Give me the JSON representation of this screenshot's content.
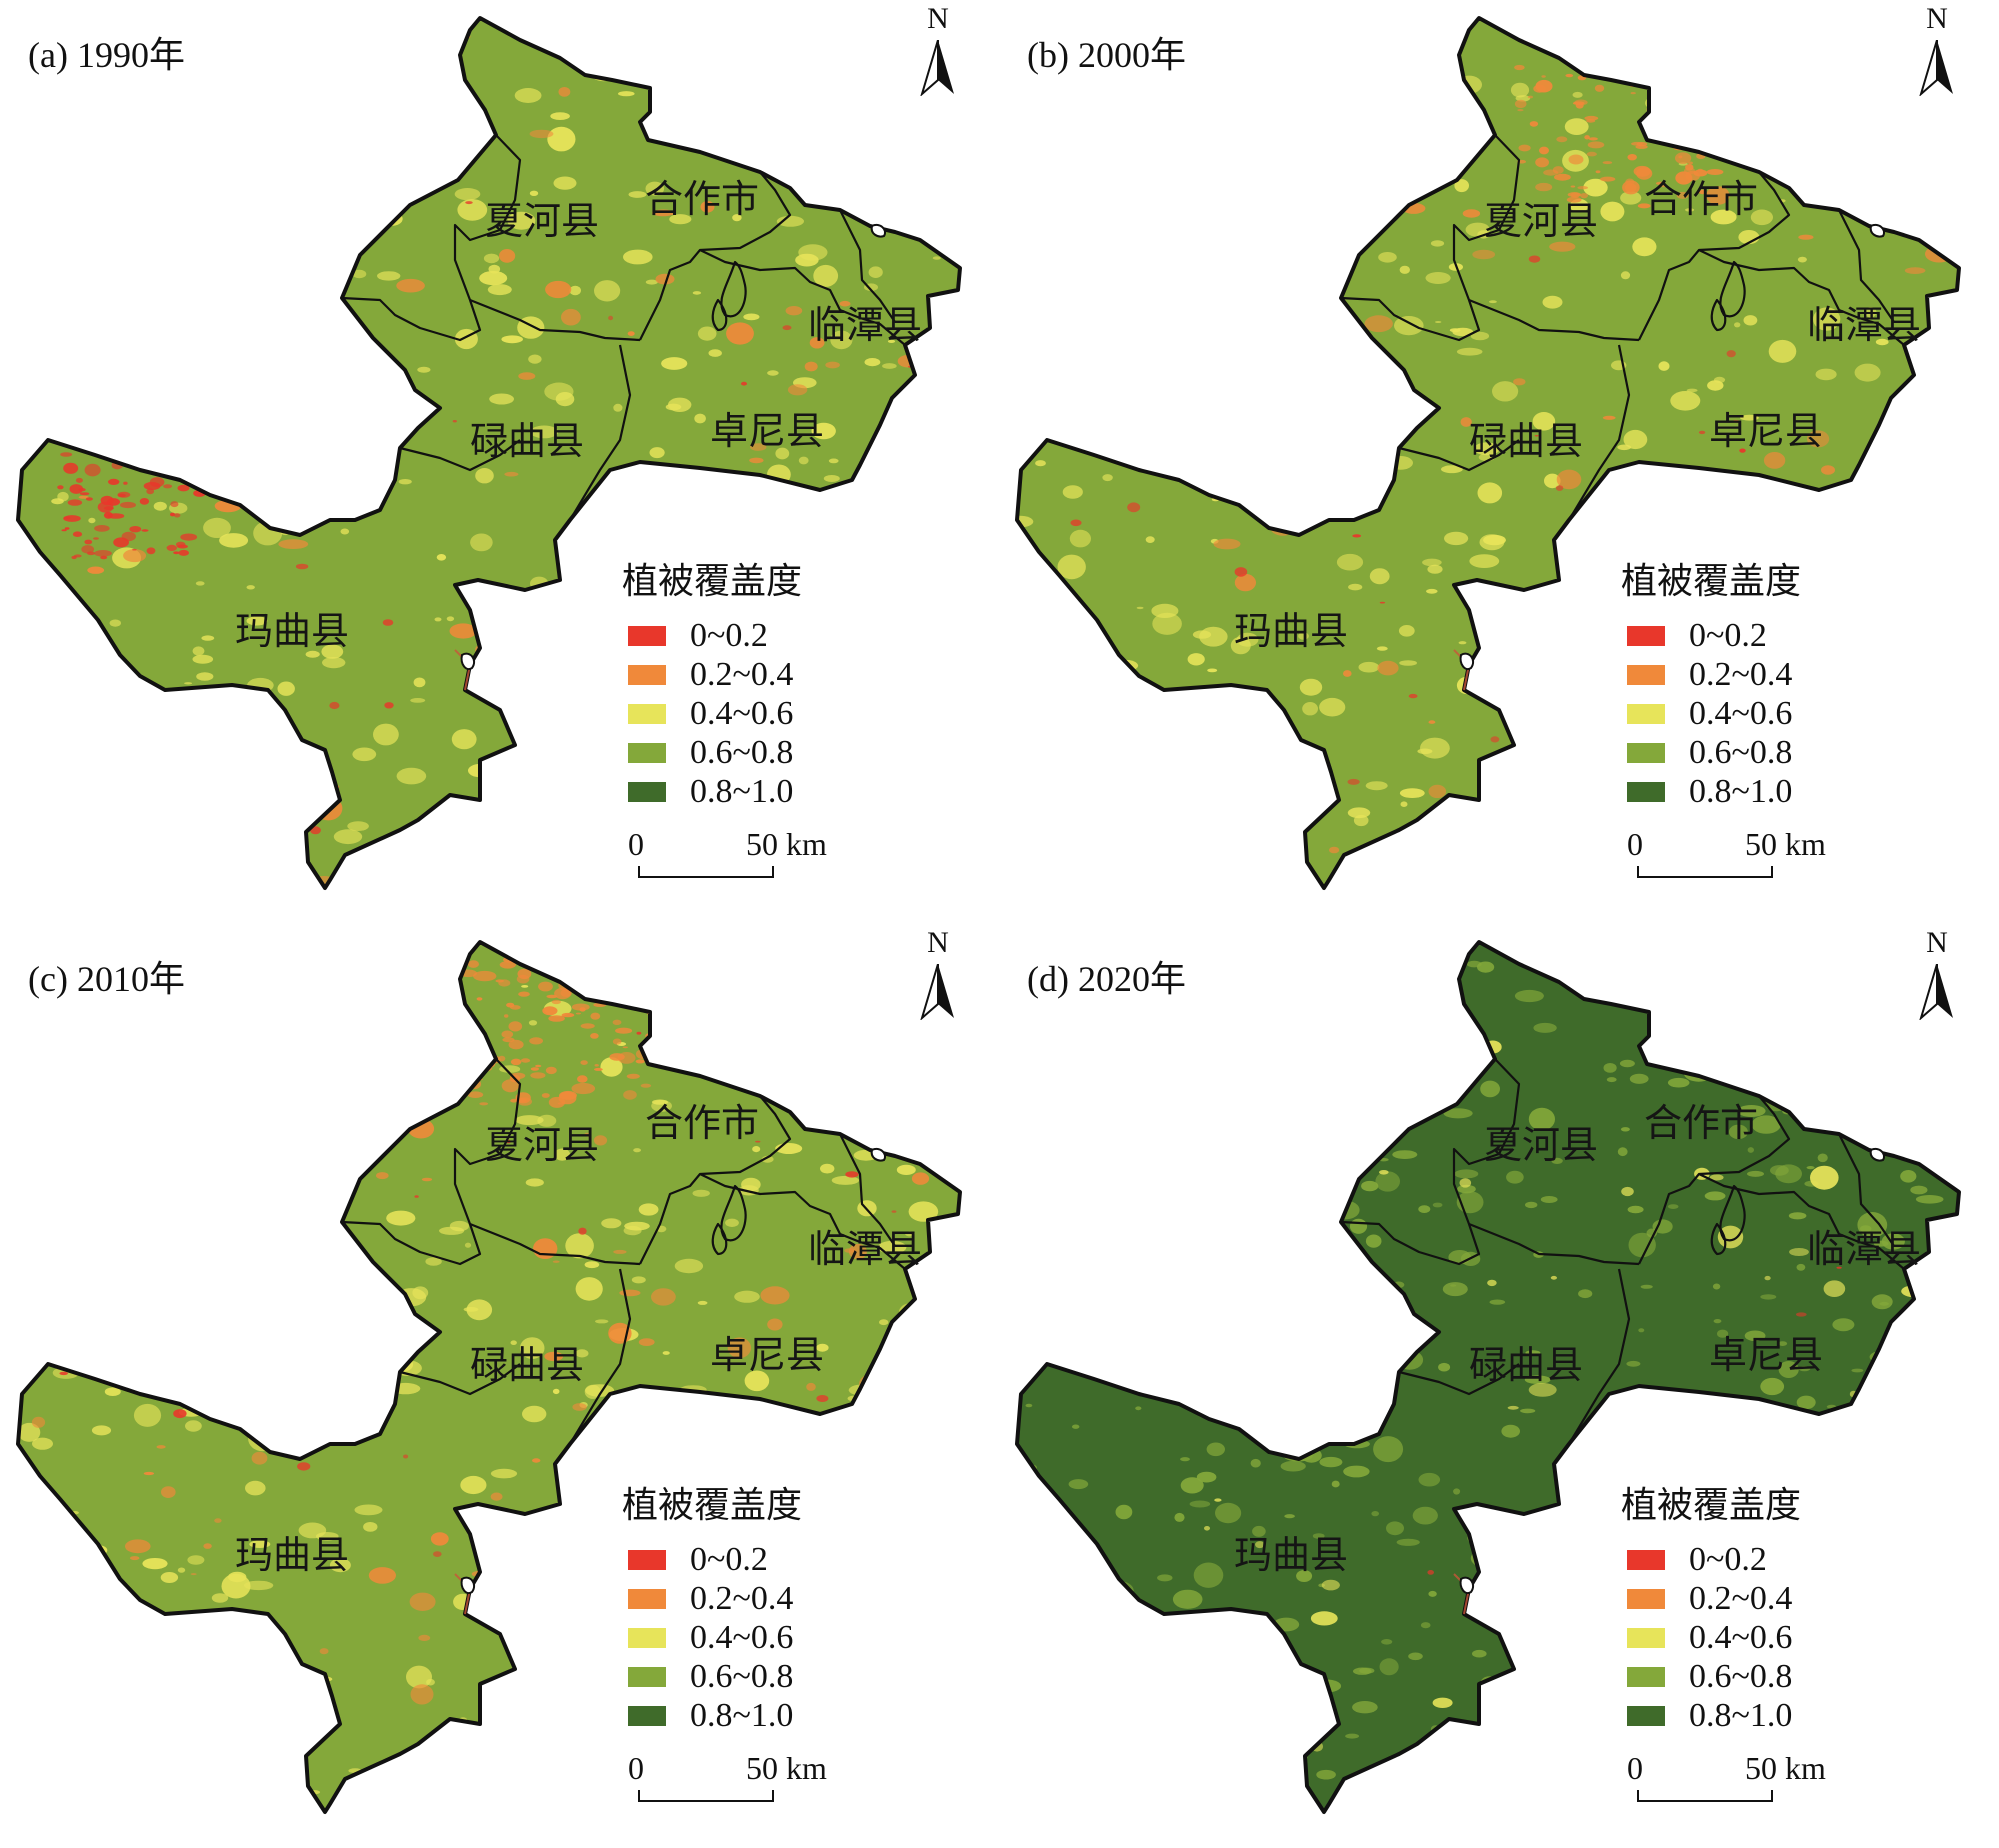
{
  "panels": [
    {
      "title": "(a) 1990年",
      "theme": "1990"
    },
    {
      "title": "(b) 2000年",
      "theme": "2000"
    },
    {
      "title": "(c) 2010年",
      "theme": "2010"
    },
    {
      "title": "(d) 2020年",
      "theme": "2020"
    }
  ],
  "north_label": "N",
  "legend": {
    "title": "植被覆盖度",
    "classes": [
      {
        "label": "0~0.2",
        "color": "#e8372b"
      },
      {
        "label": "0.2~0.4",
        "color": "#f0893a"
      },
      {
        "label": "0.4~0.6",
        "color": "#e7e45a"
      },
      {
        "label": "0.6~0.8",
        "color": "#84a83a"
      },
      {
        "label": "0.8~1.0",
        "color": "#3f6b2a"
      }
    ]
  },
  "scale_bar": {
    "start": "0",
    "end": "50 km"
  },
  "counties": {
    "xiahe": "夏河县",
    "hezuo": "合作市",
    "lintan": "临潭县",
    "luqu": "碌曲县",
    "zhuoni": "卓尼县",
    "maqu": "玛曲县"
  }
}
